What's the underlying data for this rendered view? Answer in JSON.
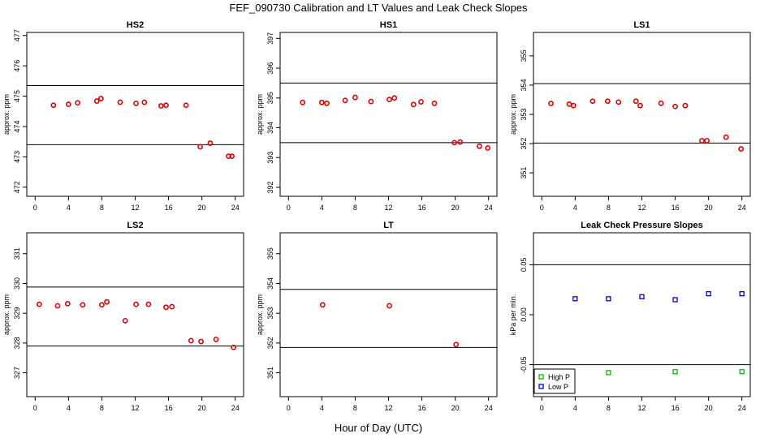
{
  "figure": {
    "title": "FEF_090730  Calibration and LT Values and Leak Check Slopes",
    "xlabel": "Hour of Day (UTC)"
  },
  "colors": {
    "ref_points": "#dd0000",
    "high_p": "#00bb00",
    "low_p": "#0000cc",
    "frame": "#000000"
  },
  "chart_data": [
    {
      "type": "scatter",
      "title": "HS2",
      "ylabel": "approx. ppm",
      "xlim": [
        -1,
        25
      ],
      "ylim": [
        471.7,
        477.1
      ],
      "xticks": [
        0,
        4,
        8,
        12,
        16,
        20,
        24
      ],
      "yticks": [
        472,
        473,
        474,
        475,
        476,
        477
      ],
      "hlines": [
        475.35,
        473.4
      ],
      "series": [
        {
          "color_key": "ref_points",
          "points": [
            [
              2.2,
              474.7
            ],
            [
              4,
              474.73
            ],
            [
              5.1,
              474.78
            ],
            [
              7.4,
              474.84
            ],
            [
              7.9,
              474.92
            ],
            [
              10.2,
              474.8
            ],
            [
              12.1,
              474.76
            ],
            [
              13.1,
              474.8
            ],
            [
              15.1,
              474.68
            ],
            [
              15.7,
              474.7
            ],
            [
              18.1,
              474.7
            ],
            [
              19.8,
              473.33
            ],
            [
              21,
              473.45
            ],
            [
              23.2,
              473.02
            ],
            [
              23.6,
              473.02
            ]
          ]
        }
      ]
    },
    {
      "type": "scatter",
      "title": "HS1",
      "ylabel": "approx. ppm",
      "xlim": [
        -1,
        25
      ],
      "ylim": [
        391.7,
        397.2
      ],
      "xticks": [
        0,
        4,
        8,
        12,
        16,
        20,
        24
      ],
      "yticks": [
        392,
        393,
        394,
        395,
        396,
        397
      ],
      "hlines": [
        395.5,
        393.5
      ],
      "series": [
        {
          "color_key": "ref_points",
          "points": [
            [
              1.7,
              394.85
            ],
            [
              4,
              394.85
            ],
            [
              4.6,
              394.82
            ],
            [
              6.8,
              394.92
            ],
            [
              8,
              395.02
            ],
            [
              9.9,
              394.88
            ],
            [
              12.1,
              394.95
            ],
            [
              12.7,
              395
            ],
            [
              15,
              394.78
            ],
            [
              15.9,
              394.87
            ],
            [
              17.5,
              394.82
            ],
            [
              19.9,
              393.5
            ],
            [
              20.6,
              393.52
            ],
            [
              22.9,
              393.38
            ],
            [
              23.9,
              393.32
            ]
          ]
        }
      ]
    },
    {
      "type": "scatter",
      "title": "LS1",
      "ylabel": "approx. ppm",
      "xlim": [
        -1,
        25
      ],
      "ylim": [
        350.2,
        355.8
      ],
      "xticks": [
        0,
        4,
        8,
        12,
        16,
        20,
        24
      ],
      "yticks": [
        351,
        352,
        353,
        354,
        355
      ],
      "hlines": [
        354.05,
        352.02
      ],
      "series": [
        {
          "color_key": "ref_points",
          "points": [
            [
              1.1,
              353.37
            ],
            [
              3.3,
              353.35
            ],
            [
              3.8,
              353.3
            ],
            [
              6.1,
              353.45
            ],
            [
              7.9,
              353.45
            ],
            [
              9.2,
              353.42
            ],
            [
              11.3,
              353.45
            ],
            [
              11.8,
              353.3
            ],
            [
              14.3,
              353.38
            ],
            [
              16,
              353.27
            ],
            [
              17.2,
              353.3
            ],
            [
              19.2,
              352.1
            ],
            [
              19.8,
              352.1
            ],
            [
              22.1,
              352.22
            ],
            [
              23.9,
              351.82
            ]
          ]
        }
      ]
    },
    {
      "type": "scatter",
      "title": "LS2",
      "ylabel": "approx. ppm",
      "xlim": [
        -1,
        25
      ],
      "ylim": [
        326.2,
        331.7
      ],
      "xticks": [
        0,
        4,
        8,
        12,
        16,
        20,
        24
      ],
      "yticks": [
        327,
        328,
        329,
        330,
        331
      ],
      "hlines": [
        329.88,
        327.9
      ],
      "series": [
        {
          "color_key": "ref_points",
          "points": [
            [
              0.5,
              329.3
            ],
            [
              2.7,
              329.25
            ],
            [
              3.9,
              329.32
            ],
            [
              5.7,
              329.28
            ],
            [
              8,
              329.28
            ],
            [
              8.6,
              329.38
            ],
            [
              10.8,
              328.75
            ],
            [
              12.1,
              329.3
            ],
            [
              13.6,
              329.3
            ],
            [
              15.7,
              329.2
            ],
            [
              16.4,
              329.22
            ],
            [
              18.7,
              328.08
            ],
            [
              19.9,
              328.05
            ],
            [
              21.7,
              328.12
            ],
            [
              23.8,
              327.85
            ]
          ]
        }
      ]
    },
    {
      "type": "scatter",
      "title": "LT",
      "ylabel": "approx. ppm",
      "xlim": [
        -1,
        25
      ],
      "ylim": [
        350.2,
        355.7
      ],
      "xticks": [
        0,
        4,
        8,
        12,
        16,
        20,
        24
      ],
      "yticks": [
        351,
        352,
        353,
        354,
        355
      ],
      "hlines": [
        353.8,
        351.85
      ],
      "series": [
        {
          "color_key": "ref_points",
          "points": [
            [
              4.1,
              353.28
            ],
            [
              12.1,
              353.25
            ],
            [
              20.1,
              351.95
            ]
          ]
        }
      ]
    },
    {
      "type": "scatter",
      "title": "Leak Check Pressure Slopes",
      "ylabel": "kPa per min.",
      "xlim": [
        -1,
        25
      ],
      "ylim": [
        -0.082,
        0.082
      ],
      "xticks": [
        0,
        4,
        8,
        12,
        16,
        20,
        24
      ],
      "yticks": [
        -0.05,
        0,
        0.05
      ],
      "ytick_labels": [
        "-0.05",
        "0.00",
        "0.05"
      ],
      "hlines": [
        0.05,
        -0.05
      ],
      "legend": {
        "position": "bottom-left",
        "entries": [
          "High P",
          "Low P"
        ]
      },
      "series": [
        {
          "name": "High P",
          "color_key": "high_p",
          "marker": "square",
          "points": [
            [
              8,
              -0.058
            ],
            [
              16,
              -0.057
            ],
            [
              24,
              -0.057
            ]
          ]
        },
        {
          "name": "Low P",
          "color_key": "low_p",
          "marker": "square",
          "points": [
            [
              4,
              0.016
            ],
            [
              8,
              0.016
            ],
            [
              12,
              0.018
            ],
            [
              16,
              0.015
            ],
            [
              20,
              0.021
            ],
            [
              24,
              0.021
            ]
          ]
        }
      ]
    }
  ]
}
